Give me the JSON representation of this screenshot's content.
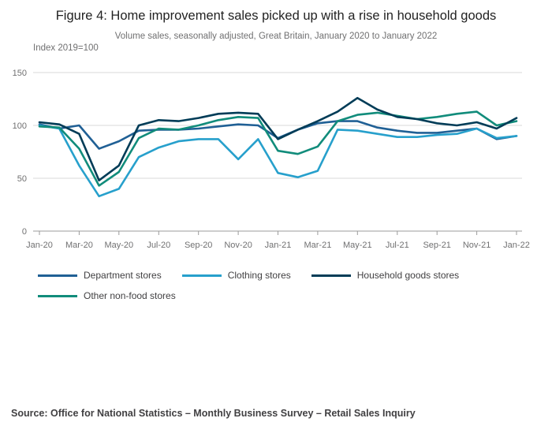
{
  "header": {
    "source_line": "Source: Office for National Statistics – Monthly Business Survey – Retail Sales Inquiry"
  },
  "chart_data": {
    "type": "line",
    "title": "Figure 4: Home improvement sales picked up with a rise in household goods",
    "subtitle": "Volume sales, seasonally adjusted, Great Britain, January 2020 to January 2022",
    "ylabel": "Index 2019=100",
    "ylim": [
      0,
      150
    ],
    "yticks": [
      0,
      50,
      100,
      150
    ],
    "grid": "horizontal",
    "legend_position": "bottom",
    "x": [
      "Jan-20",
      "Feb-20",
      "Mar-20",
      "Apr-20",
      "May-20",
      "Jun-20",
      "Jul-20",
      "Aug-20",
      "Sep-20",
      "Oct-20",
      "Nov-20",
      "Dec-20",
      "Jan-21",
      "Feb-21",
      "Mar-21",
      "Apr-21",
      "May-21",
      "Jun-21",
      "Jul-21",
      "Aug-21",
      "Sep-21",
      "Oct-21",
      "Nov-21",
      "Dec-21",
      "Jan-22"
    ],
    "x_tick_labels": [
      "Jan-20",
      "Mar-20",
      "May-20",
      "Jul-20",
      "Sep-20",
      "Nov-20",
      "Jan-21",
      "Mar-21",
      "May-21",
      "Jul-21",
      "Sep-21",
      "Nov-21",
      "Jan-22"
    ],
    "series": [
      {
        "name": "Department stores",
        "color": "#206095",
        "values": [
          101,
          97,
          100,
          78,
          85,
          95,
          96,
          96,
          97,
          99,
          101,
          100,
          88,
          96,
          102,
          104,
          104,
          98,
          95,
          93,
          93,
          95,
          97,
          87,
          90
        ]
      },
      {
        "name": "Clothing stores",
        "color": "#27A0CC",
        "values": [
          100,
          97,
          62,
          33,
          40,
          70,
          79,
          85,
          87,
          87,
          68,
          87,
          55,
          51,
          57,
          96,
          95,
          92,
          89,
          89,
          91,
          92,
          97,
          88,
          90
        ]
      },
      {
        "name": "Household goods stores",
        "color": "#003C57",
        "values": [
          103,
          101,
          92,
          48,
          62,
          100,
          105,
          104,
          107,
          111,
          112,
          111,
          87,
          96,
          104,
          113,
          126,
          115,
          108,
          106,
          102,
          100,
          103,
          97,
          107
        ]
      },
      {
        "name": "Other non-food stores",
        "color": "#118C7B",
        "values": [
          99,
          98,
          78,
          43,
          56,
          88,
          97,
          96,
          100,
          105,
          108,
          107,
          76,
          73,
          80,
          104,
          110,
          112,
          109,
          106,
          108,
          111,
          113,
          100,
          104
        ]
      }
    ]
  }
}
